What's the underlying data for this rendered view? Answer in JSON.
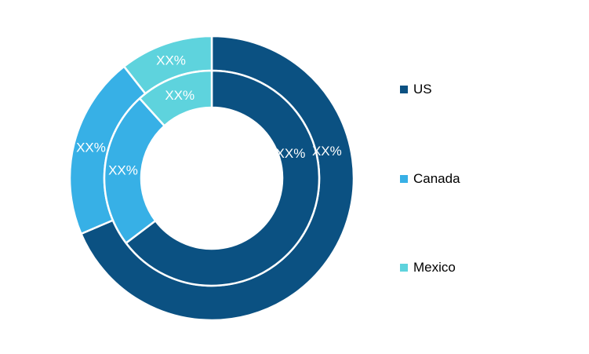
{
  "chart_data": {
    "type": "pie",
    "subtype": "double-donut",
    "categories": [
      "US",
      "Canada",
      "Mexico"
    ],
    "colors": [
      "#0b5182",
      "#37b0e6",
      "#5ed3dd"
    ],
    "series": [
      {
        "ring": "outer",
        "values": [
          68.6,
          20.8,
          10.6
        ],
        "labels": [
          "XX%",
          "XX%",
          "XX%"
        ]
      },
      {
        "ring": "inner",
        "values": [
          64.7,
          23.6,
          11.7
        ],
        "labels": [
          "XX%",
          "XX%",
          "XX%"
        ]
      }
    ],
    "legend_position": "right"
  }
}
